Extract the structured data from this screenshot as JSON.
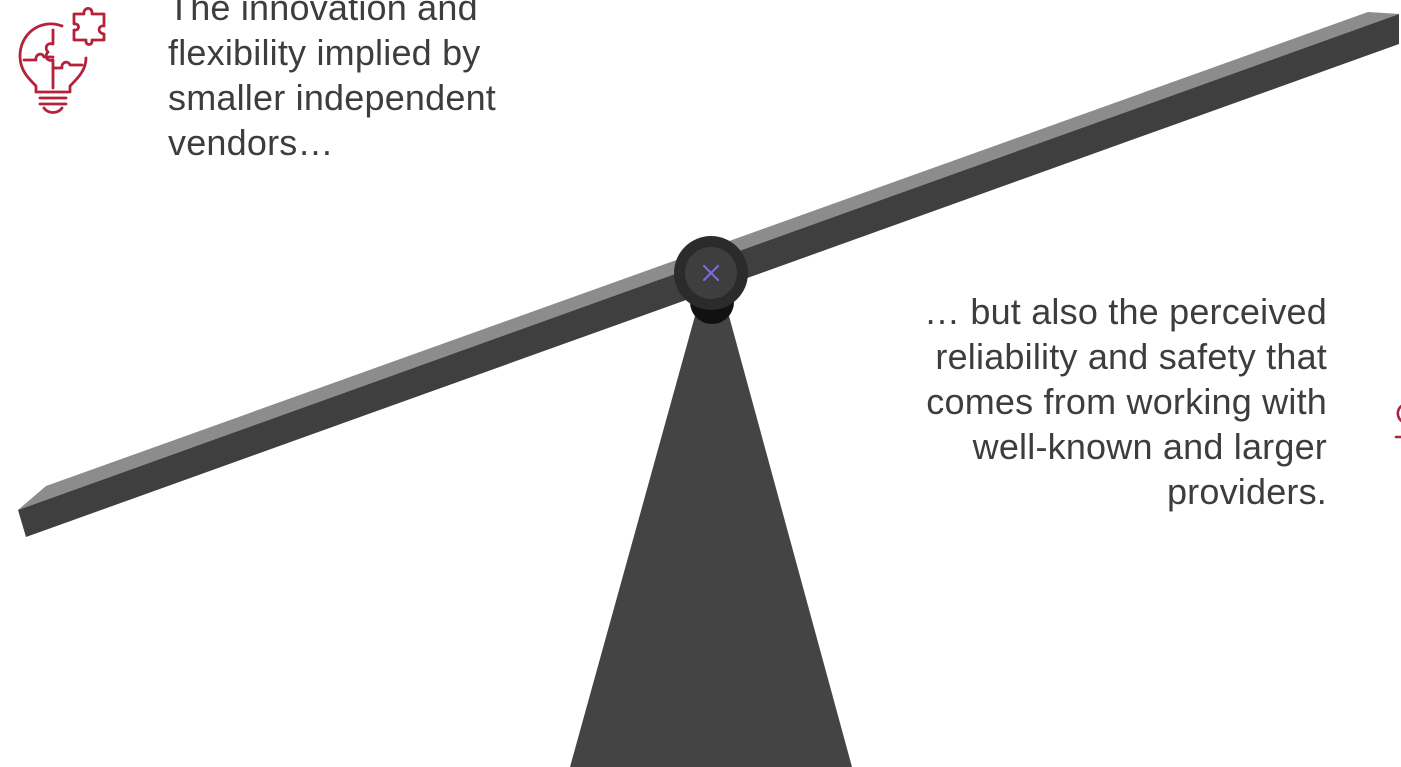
{
  "left_statement": {
    "lines": [
      "The innovation and",
      "flexibility implied by",
      "smaller independent",
      "vendors…"
    ]
  },
  "right_statement": {
    "lines": [
      "… but also the perceived",
      "reliability and safety that",
      "comes from working with",
      "well-known and larger",
      "providers."
    ]
  },
  "icons": {
    "left": "lightbulb-puzzle-icon",
    "right": "partially-visible-icon",
    "pivot": "close-x-icon"
  },
  "colors": {
    "icon_accent": "#b5203a",
    "seesaw_dark": "#444444",
    "beam_top": "#8c8c8c",
    "pivot_x": "#7b6ad8",
    "text": "#3d3d3d"
  }
}
